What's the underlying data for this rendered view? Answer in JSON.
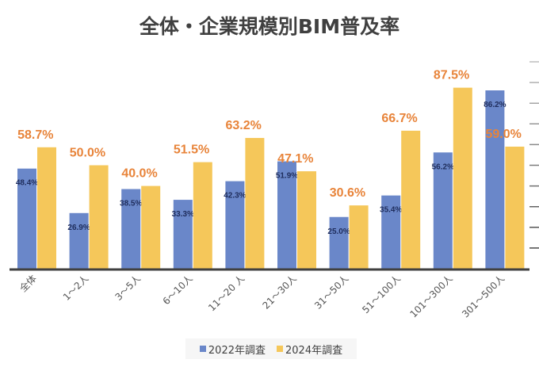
{
  "chart_data": {
    "type": "bar",
    "title": "全体・企業規模別BIM普及率",
    "categories": [
      "全体",
      "1～2人",
      "3～5人",
      "6～10人",
      "11～20 人",
      "21～30人",
      "31～50人",
      "51～100人",
      "101～300人",
      "301～500人"
    ],
    "series": [
      {
        "name": "2022年調査",
        "color": "#6a87c9",
        "label_color": "#1f2d5c",
        "values": [
          48.4,
          26.9,
          38.5,
          33.3,
          42.3,
          51.9,
          25.0,
          35.4,
          56.2,
          86.2
        ]
      },
      {
        "name": "2024年調査",
        "color": "#f5c75a",
        "label_color": "#e8843a",
        "values": [
          58.7,
          50.0,
          40.0,
          51.5,
          63.2,
          47.1,
          30.6,
          66.7,
          87.5,
          59.0
        ]
      }
    ],
    "ylim": [
      0,
      100
    ],
    "y_step": 10,
    "grid": true,
    "legend": "bottom",
    "value_suffix": "%"
  }
}
